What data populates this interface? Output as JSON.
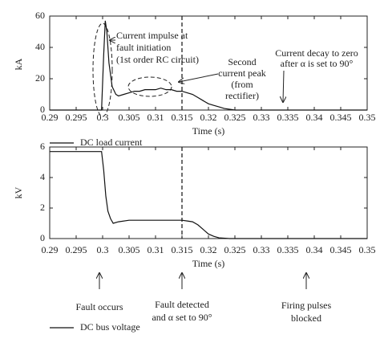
{
  "chart_data": [
    {
      "type": "line",
      "xlabel": "Time (s)",
      "ylabel": "kA",
      "x": [
        0.29,
        0.2998,
        0.3002,
        0.3005,
        0.3008,
        0.3012,
        0.3018,
        0.3025,
        0.303,
        0.304,
        0.305,
        0.306,
        0.307,
        0.308,
        0.309,
        0.31,
        0.311,
        0.312,
        0.313,
        0.314,
        0.315,
        0.316,
        0.317,
        0.318,
        0.319,
        0.32,
        0.321,
        0.322,
        0.323,
        0.325,
        0.35
      ],
      "series": [
        {
          "name": "DC load current",
          "color": "#111111",
          "values": [
            0,
            0,
            35,
            57,
            50,
            30,
            15,
            10,
            9,
            10,
            11,
            12,
            12,
            13,
            13,
            13,
            14,
            13,
            13,
            12,
            12,
            11,
            10,
            8,
            6,
            4,
            3,
            2,
            1,
            0,
            0
          ]
        }
      ],
      "xlim": [
        0.29,
        0.35
      ],
      "ylim": [
        0,
        60
      ],
      "xticks": [
        0.29,
        0.295,
        0.3,
        0.305,
        0.31,
        0.315,
        0.32,
        0.325,
        0.33,
        0.335,
        0.34,
        0.345,
        0.35
      ],
      "yticks": [
        0,
        20,
        40,
        60
      ],
      "vline": 0.315,
      "annotations": [
        [
          "Current impulse at",
          "fault initiation",
          "(1st order RC circuit)"
        ],
        [
          "Second",
          "current peak",
          "(from",
          "rectifier)"
        ],
        [
          "Current decay to zero",
          "after α is set to 90°"
        ]
      ]
    },
    {
      "type": "line",
      "xlabel": "Time (s)",
      "ylabel": "kV",
      "x": [
        0.29,
        0.2998,
        0.3002,
        0.3006,
        0.301,
        0.3015,
        0.302,
        0.303,
        0.305,
        0.31,
        0.313,
        0.315,
        0.316,
        0.317,
        0.318,
        0.319,
        0.32,
        0.321,
        0.322,
        0.324,
        0.35
      ],
      "series": [
        {
          "name": "DC bus voltage",
          "color": "#111111",
          "values": [
            5.7,
            5.7,
            4.5,
            2.8,
            1.8,
            1.3,
            1.0,
            1.1,
            1.2,
            1.2,
            1.2,
            1.2,
            1.15,
            1.1,
            0.9,
            0.6,
            0.3,
            0.15,
            0.05,
            0,
            0
          ]
        }
      ],
      "xlim": [
        0.29,
        0.35
      ],
      "ylim": [
        0,
        6
      ],
      "xticks": [
        0.29,
        0.295,
        0.3,
        0.305,
        0.31,
        0.315,
        0.32,
        0.325,
        0.33,
        0.335,
        0.34,
        0.345,
        0.35
      ],
      "yticks": [
        0,
        2,
        4,
        6
      ],
      "vline": 0.315,
      "annotations": [
        [
          "Fault occurs"
        ],
        [
          "Fault detected",
          "and α set to 90°"
        ],
        [
          "Firing pulses",
          "blocked"
        ]
      ]
    }
  ]
}
